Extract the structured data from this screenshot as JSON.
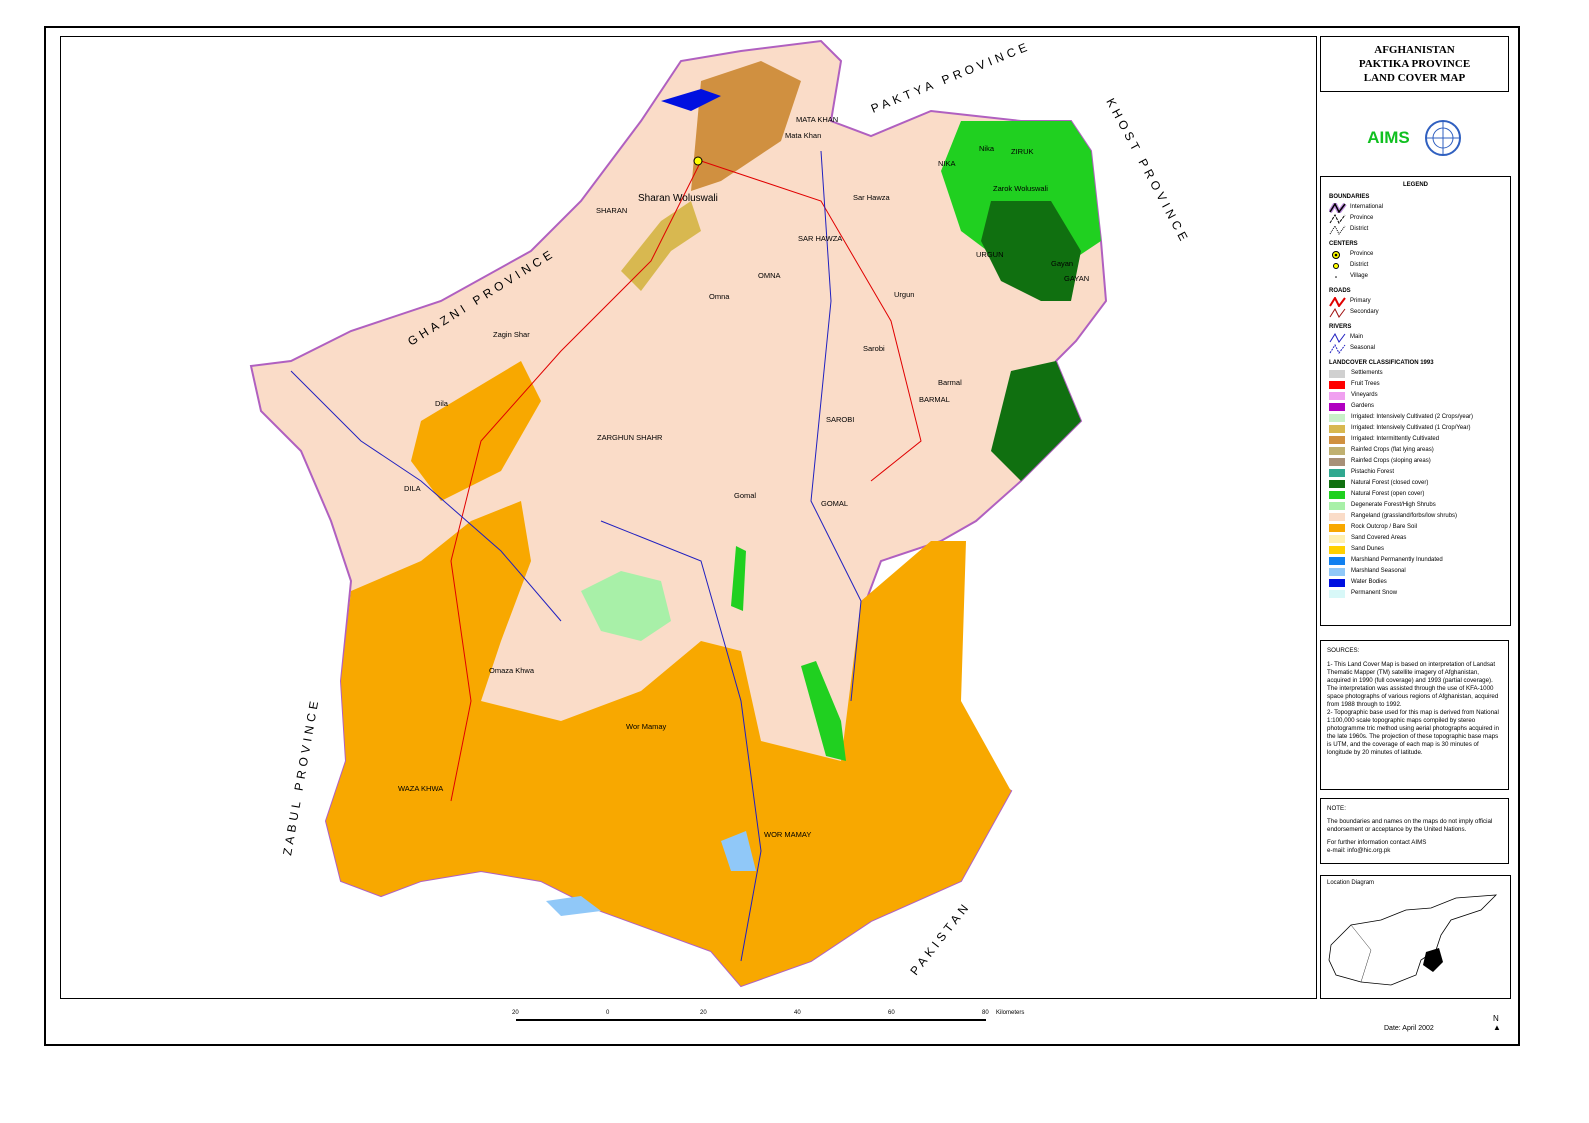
{
  "title": {
    "line1": "AFGHANISTAN",
    "line2": "PAKTIKA PROVINCE",
    "line3": "LAND COVER MAP"
  },
  "logo": {
    "text": "AIMS",
    "emblem": "un-emblem-icon"
  },
  "legend": {
    "heading": "LEGEND",
    "boundaries": {
      "heading": "BOUNDARIES",
      "items": [
        "International",
        "Province",
        "District"
      ]
    },
    "centers": {
      "heading": "CENTERS",
      "items": [
        "Province",
        "District",
        "Village"
      ]
    },
    "roads": {
      "heading": "ROADS",
      "items": [
        "Primary",
        "Secondary"
      ]
    },
    "rivers": {
      "heading": "RIVERS",
      "items": [
        "Main",
        "Seasonal"
      ]
    },
    "landcover": {
      "heading": "LANDCOVER CLASSIFICATION 1993",
      "items": [
        {
          "label": "Settlements",
          "color": "#d0d0d0"
        },
        {
          "label": "Fruit Trees",
          "color": "#ff0000"
        },
        {
          "label": "Vineyards",
          "color": "#f0a0f0"
        },
        {
          "label": "Gardens",
          "color": "#b000c0"
        },
        {
          "label": "Irrigated: Intensively Cultivated (2 Crops/year)",
          "color": "#c8f0c8"
        },
        {
          "label": "Irrigated: Intensively Cultivated (1 Crop/Year)",
          "color": "#d8b850"
        },
        {
          "label": "Irrigated: Intermittently Cultivated",
          "color": "#d09040"
        },
        {
          "label": "Rainfed Crops (flat lying areas)",
          "color": "#c0b070"
        },
        {
          "label": "Rainfed Crops (sloping areas)",
          "color": "#a89078"
        },
        {
          "label": "Pistachio Forest",
          "color": "#30a890"
        },
        {
          "label": "Natural Forest (closed cover)",
          "color": "#107010"
        },
        {
          "label": "Natural Forest (open cover)",
          "color": "#20d020"
        },
        {
          "label": "Degenerate Forest/High Shrubs",
          "color": "#a8f0a8"
        },
        {
          "label": "Rangeland (grassland/forbs/low shrubs)",
          "color": "#fadcc8"
        },
        {
          "label": "Rock Outcrop / Bare Soil",
          "color": "#f8a800"
        },
        {
          "label": "Sand Covered Areas",
          "color": "#fff0b0"
        },
        {
          "label": "Sand Dunes",
          "color": "#ffd000"
        },
        {
          "label": "Marshland Permanently Inundated",
          "color": "#1080f0"
        },
        {
          "label": "Marshland Seasonal",
          "color": "#90c8f8"
        },
        {
          "label": "Water Bodies",
          "color": "#0010e0"
        },
        {
          "label": "Permanent Snow",
          "color": "#d8f8f8"
        }
      ]
    }
  },
  "sources": {
    "heading": "SOURCES:",
    "p1": "1- This Land Cover Map is based on interpretation of Landsat Thematic Mapper (TM) satellite imagery of Afghanistan, acquired in 1990 (full coverage) and 1993 (partial coverage). The interpretation was assisted through the use of KFA-1000 space photographs of various regions of Afghanistan, acquired from 1988 through to 1992.",
    "p2": "2- Topographic base used for this map is derived from National 1:100,000 scale topographic maps compiled by stereo photogramme tric method using aerial photographs acquired in the late 1960s. The projection of these topographic base maps is UTM, and the coverage of each map is 30 minutes of longitude by 20 minutes of latitude."
  },
  "note": {
    "heading": "NOTE:",
    "text": "The boundaries and names on the maps do not imply official endorsement or acceptance by the United Nations.",
    "contact": "For further information contact AIMS",
    "email": "e-mail: info@hic.org.pk"
  },
  "location_diagram": {
    "heading": "Location Diagram"
  },
  "scale": {
    "ticks": [
      "20",
      "0",
      "20",
      "40",
      "60",
      "80"
    ],
    "unit": "Kilometers"
  },
  "date": "Date: April 2002",
  "north": "N",
  "map": {
    "neighbors": [
      "GHAZNI PROVINCE",
      "PAKTYA PROVINCE",
      "KHOST PROVINCE",
      "PAKISTAN",
      "ZABUL PROVINCE"
    ],
    "districts": [
      "SHARAN",
      "Sharan Woluswali",
      "MATA KHAN",
      "Mata Khan",
      "SAR HAWZA",
      "Sar Hawza",
      "OMNA",
      "Omna",
      "ZARGHUN SHAHR",
      "Zagin Shar",
      "NIKA",
      "Nika",
      "ZIRUK",
      "Zarok Woluswali",
      "URGUN",
      "Urgun",
      "GAYAN",
      "Gayan",
      "SAROBI",
      "Sarobi",
      "BARMAL",
      "Barmal",
      "GOMAL",
      "Gomal",
      "DILA",
      "Dila",
      "Omaza Khwa",
      "WAZA KHWA",
      "Wor Mamay",
      "WOR MAMAY"
    ]
  }
}
